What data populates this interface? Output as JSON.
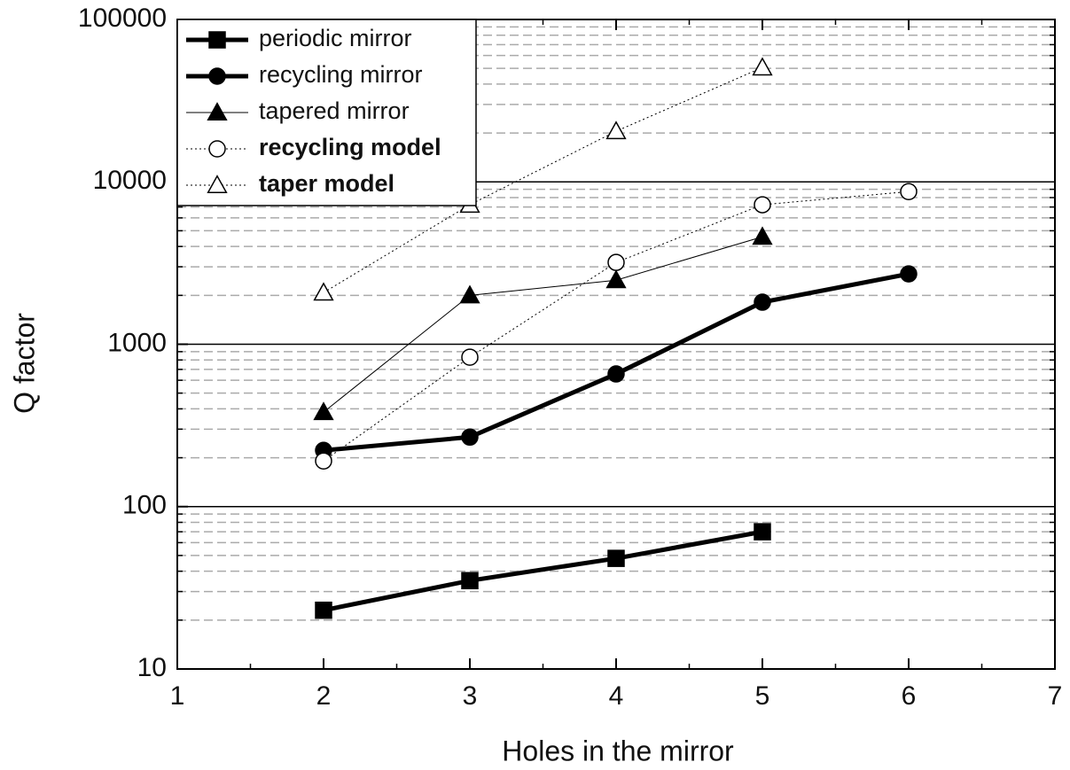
{
  "chart_data": {
    "type": "line",
    "x_label": "Holes in the mirror",
    "y_label": "Q factor",
    "xlim": [
      1,
      7
    ],
    "xticks": [
      1,
      2,
      3,
      4,
      5,
      6,
      7
    ],
    "xminorticks": [
      1.5,
      2.5,
      3.5,
      4.5,
      5.5,
      6.5
    ],
    "ylim": [
      10,
      100000
    ],
    "yscale": "log",
    "yticks": [
      10,
      100,
      1000,
      10000,
      100000
    ],
    "yminorticks": [
      20,
      30,
      40,
      50,
      60,
      70,
      80,
      90,
      200,
      300,
      400,
      500,
      600,
      700,
      800,
      900,
      2000,
      3000,
      4000,
      5000,
      6000,
      7000,
      8000,
      9000,
      20000,
      30000,
      40000,
      50000,
      60000,
      70000,
      80000,
      90000
    ],
    "grid": true,
    "legend": "upper left",
    "series": [
      {
        "name": "periodic mirror",
        "color": "#000000",
        "linewidth": 5,
        "dash": "solid",
        "marker": "square",
        "marker_fill": "filled",
        "label_bold": false,
        "x": [
          2,
          3,
          4,
          5
        ],
        "values": [
          23,
          35,
          48,
          70
        ]
      },
      {
        "name": "recycling mirror",
        "color": "#000000",
        "linewidth": 5,
        "dash": "solid",
        "marker": "circle",
        "marker_fill": "filled",
        "label_bold": false,
        "x": [
          2,
          3,
          4,
          5,
          6
        ],
        "values": [
          222,
          268,
          656,
          1815,
          2710
        ]
      },
      {
        "name": "tapered mirror",
        "color": "#000000",
        "linewidth": 1,
        "dash": "solid",
        "marker": "triangle",
        "marker_fill": "filled",
        "label_bold": false,
        "x": [
          2,
          3,
          4,
          5
        ],
        "values": [
          382,
          2000,
          2480,
          4590
        ]
      },
      {
        "name": "recycling model",
        "color": "#000000",
        "linewidth": 1,
        "dash": "dotted",
        "marker": "circle",
        "marker_fill": "open",
        "label_bold": true,
        "x": [
          2,
          3,
          4,
          5,
          6
        ],
        "values": [
          191,
          832,
          3190,
          7230,
          8710
        ]
      },
      {
        "name": "taper model",
        "color": "#000000",
        "linewidth": 1,
        "dash": "dotted",
        "marker": "triangle",
        "marker_fill": "open",
        "label_bold": true,
        "x": [
          2,
          3,
          4,
          5
        ],
        "values": [
          2080,
          7230,
          20500,
          50600
        ]
      }
    ]
  }
}
